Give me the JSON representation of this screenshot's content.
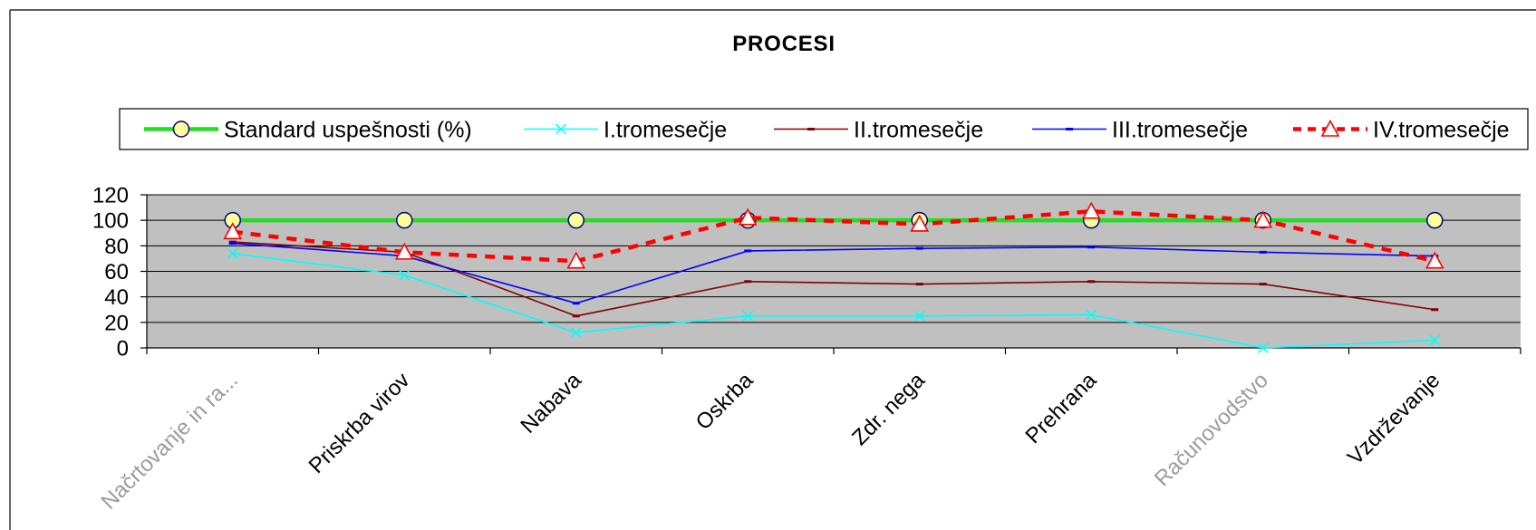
{
  "chart_data": {
    "type": "line",
    "title": "PROCESI",
    "categories": [
      "Načrtovanje in ra...",
      "Priskrba virov",
      "Nabava",
      "Oskrba",
      "Zdr. nega",
      "Prehrana",
      "Računovodstvo",
      "Vzdrževanje"
    ],
    "series": [
      {
        "name": "Standard uspešnosti (%)",
        "values": [
          100,
          100,
          100,
          100,
          100,
          100,
          100,
          100
        ],
        "color": "#22DD22",
        "line_style": "solid",
        "marker": "circle",
        "marker_fill": "#FFFF99",
        "marker_stroke": "#000080"
      },
      {
        "name": "I.tromesečje",
        "values": [
          74,
          57,
          12,
          25,
          25,
          26,
          0,
          6
        ],
        "color": "#00FFFF",
        "line_style": "solid",
        "marker": "x"
      },
      {
        "name": "II.tromesečje",
        "values": [
          83,
          75,
          25,
          52,
          50,
          52,
          50,
          30
        ],
        "color": "#800000",
        "line_style": "solid",
        "marker": "dash"
      },
      {
        "name": "III.tromesečje",
        "values": [
          82,
          72,
          35,
          76,
          78,
          79,
          75,
          72
        ],
        "color": "#0000FF",
        "line_style": "solid",
        "marker": "dash"
      },
      {
        "name": "IV.tromesečje",
        "values": [
          91,
          75,
          68,
          102,
          97,
          107,
          100,
          68
        ],
        "color": "#FF0000",
        "line_style": "dotted",
        "marker": "triangle",
        "marker_fill": "#FFFFFF"
      }
    ],
    "ylim": [
      0,
      120
    ],
    "yticks": [
      0,
      20,
      40,
      60,
      80,
      100,
      120
    ],
    "grid": true,
    "legend_position": "top",
    "plot_background": "#C0C0C0"
  }
}
